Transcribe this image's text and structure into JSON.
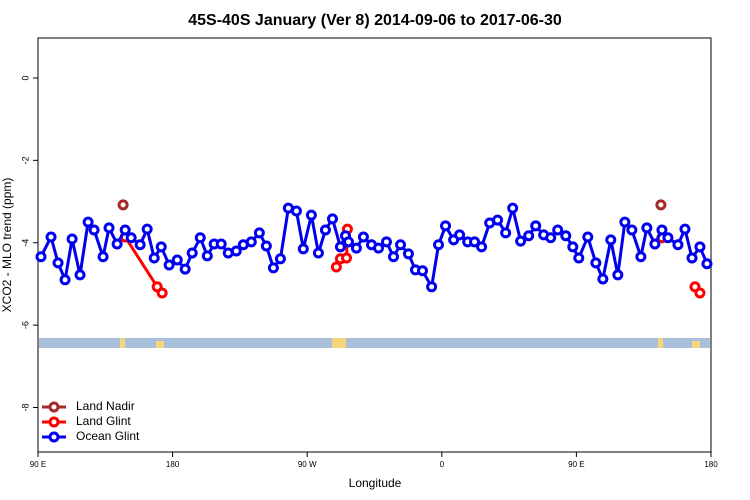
{
  "chart_data": {
    "type": "line",
    "title": "45S-40S January (Ver 8)   2014-09-06 to 2017-06-30",
    "x_label": "Longitude",
    "y_label": "XCO2 - MLO trend (ppm)",
    "xlim": [
      90,
      540
    ],
    "xticks": [
      {
        "value": 90,
        "label": "90 E"
      },
      {
        "value": 180,
        "label": "180"
      },
      {
        "value": 270,
        "label": "90 W"
      },
      {
        "value": 360,
        "label": "0"
      },
      {
        "value": 450,
        "label": "90 E"
      },
      {
        "value": 540,
        "label": "180"
      }
    ],
    "ylim": [
      -9.08,
      0.97
    ],
    "yticks": [
      0,
      -2,
      -4,
      -6,
      -8
    ],
    "legend": "bottomleft",
    "series": [
      {
        "name": "Land Nadir",
        "color": "#a52a2a",
        "line": false,
        "x": [
          146.9,
          506.5
        ],
        "values": [
          -3.08,
          -3.08
        ]
      },
      {
        "name": "Land Glint",
        "color": "#ff0000",
        "line": true,
        "x": [
          148.3,
          169.7,
          173.0,
          null,
          289.5,
          292.2,
          296.3,
          296.9,
          null,
          507.2,
          null,
          529.3,
          532.6
        ],
        "values": [
          -3.86,
          -5.07,
          -5.22,
          null,
          -4.59,
          -4.39,
          -4.37,
          -3.67,
          null,
          -3.88,
          null,
          -5.07,
          -5.22
        ]
      },
      {
        "name": "Ocean Glint",
        "color": "#0000ee",
        "line": true,
        "x": [
          92.0,
          98.7,
          103.4,
          108.1,
          112.8,
          118.1,
          123.5,
          127.5,
          133.5,
          137.5,
          142.9,
          148.3,
          152.3,
          158.3,
          163.0,
          167.7,
          172.4,
          177.7,
          183.1,
          188.4,
          193.1,
          198.5,
          203.2,
          207.8,
          212.5,
          217.2,
          222.6,
          227.3,
          232.6,
          238.0,
          242.7,
          247.4,
          252.1,
          257.4,
          262.8,
          267.4,
          272.8,
          277.5,
          282.2,
          286.9,
          292.2,
          295.6,
          297.6,
          302.9,
          307.6,
          313.0,
          317.7,
          323.0,
          327.7,
          332.4,
          337.7,
          342.4,
          347.1,
          353.2,
          357.8,
          362.5,
          367.9,
          371.9,
          377.3,
          381.9,
          386.6,
          392.0,
          397.3,
          402.7,
          407.4,
          412.7,
          418.1,
          422.8,
          428.1,
          432.8,
          437.5,
          442.9,
          447.6,
          451.6,
          457.6,
          463.0,
          467.7,
          473.0,
          477.7,
          482.4,
          487.1,
          493.1,
          497.1,
          502.5,
          507.2,
          511.2,
          517.9,
          522.6,
          527.3,
          532.6,
          537.3
        ],
        "values": [
          -4.34,
          -3.86,
          -4.49,
          -4.9,
          -3.91,
          -4.78,
          -3.5,
          -3.69,
          -4.34,
          -3.64,
          -4.03,
          -3.69,
          -3.88,
          -4.05,
          -3.67,
          -4.37,
          -4.1,
          -4.54,
          -4.42,
          -4.64,
          -4.25,
          -3.88,
          -4.32,
          -4.03,
          -4.03,
          -4.25,
          -4.2,
          -4.05,
          -3.98,
          -3.76,
          -4.08,
          -4.61,
          -4.39,
          -3.16,
          -3.23,
          -4.15,
          -3.33,
          -4.25,
          -3.69,
          -3.42,
          -4.1,
          -3.83,
          -3.98,
          -4.13,
          -3.86,
          -4.05,
          -4.13,
          -3.98,
          -4.34,
          -4.05,
          -4.27,
          -4.66,
          -4.68,
          -5.07,
          -4.05,
          -3.59,
          -3.93,
          -3.81,
          -3.98,
          -3.98,
          -4.1,
          -3.52,
          -3.45,
          -3.76,
          -3.16,
          -3.96,
          -3.83,
          -3.59,
          -3.81,
          -3.88,
          -3.69,
          -3.83,
          -4.1,
          -4.37,
          -3.86,
          -4.49,
          -4.88,
          -3.93,
          -4.78,
          -3.5,
          -3.69,
          -4.34,
          -3.64,
          -4.03,
          -3.69,
          -3.88,
          -4.05,
          -3.67,
          -4.37,
          -4.1,
          -4.51
        ]
      }
    ]
  }
}
